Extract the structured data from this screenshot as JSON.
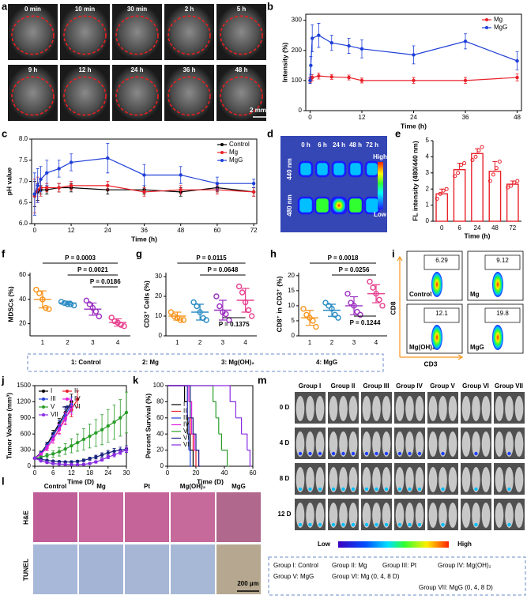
{
  "panel_labels": [
    "a",
    "b",
    "c",
    "d",
    "e",
    "f",
    "g",
    "h",
    "i",
    "j",
    "k",
    "l",
    "m"
  ],
  "ultrasound": {
    "times": [
      "0 min",
      "10 min",
      "30 min",
      "2 h",
      "5 h",
      "9 h",
      "12 h",
      "24 h",
      "36 h",
      "48 h"
    ],
    "scale_bar": "2 mm"
  },
  "chart_data": [
    {
      "type": "line",
      "y_label": "Intensity (%)",
      "x_label": "Time (h)",
      "x": [
        0,
        0.17,
        0.5,
        2,
        5,
        9,
        12,
        24,
        36,
        48
      ],
      "xlim": [
        -1,
        49
      ],
      "xticks": [
        0,
        12,
        24,
        36,
        48
      ],
      "ylim": [
        0,
        320
      ],
      "yticks": [
        0,
        100,
        200,
        300
      ],
      "legend": "upper right",
      "series": [
        {
          "name": "Mg",
          "color": "#e8212a",
          "values": [
            100,
            105,
            110,
            115,
            112,
            110,
            100,
            100,
            100,
            110
          ],
          "errors": [
            8,
            10,
            10,
            10,
            8,
            8,
            8,
            10,
            10,
            12
          ]
        },
        {
          "name": "MgG",
          "color": "#1f3fd8",
          "values": [
            100,
            150,
            240,
            250,
            225,
            215,
            205,
            185,
            230,
            165
          ],
          "errors": [
            10,
            30,
            45,
            40,
            25,
            25,
            30,
            30,
            25,
            30
          ]
        }
      ]
    },
    {
      "type": "line",
      "y_label": "pH value",
      "x_label": "Time (h)",
      "x": [
        0,
        1,
        2,
        4,
        8,
        12,
        24,
        36,
        48,
        60,
        72
      ],
      "xlim": [
        -1,
        73
      ],
      "xticks": [
        0,
        12,
        24,
        36,
        48,
        60,
        72
      ],
      "ylim": [
        6,
        8
      ],
      "yticks": [
        {
          "value": 6,
          "label": "6.0"
        },
        6.5,
        {
          "value": 7,
          "label": "7.0"
        },
        7.5,
        {
          "value": 8,
          "label": "8.0"
        }
      ],
      "legend": "upper right",
      "series": [
        {
          "name": "Control",
          "color": "#000000",
          "values": [
            6.7,
            6.75,
            6.8,
            6.8,
            6.85,
            6.85,
            6.8,
            6.8,
            6.75,
            6.85,
            6.75
          ],
          "errors": [
            0.3,
            0.2,
            0.1,
            0.1,
            0.1,
            0.1,
            0.1,
            0.1,
            0.1,
            0.1,
            0.1
          ]
        },
        {
          "name": "Mg",
          "color": "#e8212a",
          "values": [
            6.65,
            6.8,
            6.85,
            6.85,
            6.85,
            6.9,
            6.9,
            6.75,
            6.8,
            6.8,
            6.75
          ],
          "errors": [
            0.4,
            0.3,
            0.2,
            0.1,
            0.1,
            0.1,
            0.1,
            0.1,
            0.1,
            0.1,
            0.1
          ]
        },
        {
          "name": "MgG",
          "color": "#1f3fd8",
          "values": [
            6.7,
            6.9,
            7.05,
            7.2,
            7.3,
            7.45,
            7.55,
            7.15,
            7.15,
            6.95,
            6.95
          ],
          "errors": [
            0.5,
            0.4,
            0.3,
            0.3,
            0.2,
            0.2,
            0.35,
            0.25,
            0.2,
            0.15,
            0.1
          ]
        }
      ]
    },
    {
      "type": "bar",
      "y_label": "FL intensity (480/440 nm)",
      "x_label": "Time (h)",
      "categories": [
        "0",
        "6",
        "24",
        "48",
        "72"
      ],
      "values": [
        1.7,
        3.2,
        4.2,
        3.1,
        2.3
      ],
      "errors": [
        0.3,
        0.4,
        0.3,
        0.6,
        0.2
      ],
      "points": [
        [
          1.4,
          1.7,
          1.9,
          2.0
        ],
        [
          2.8,
          3.0,
          3.5,
          3.6
        ],
        [
          3.8,
          4.0,
          4.4,
          4.6
        ],
        [
          2.5,
          2.9,
          3.3,
          3.7
        ],
        [
          2.1,
          2.2,
          2.4,
          2.5
        ]
      ],
      "color": "#e8212a",
      "ylim": [
        0,
        5
      ],
      "yticks": [
        0,
        1,
        2,
        3,
        4,
        5
      ]
    },
    {
      "type": "dot",
      "y_label": "MDSCs (%)",
      "categories": [
        "1",
        "2",
        "3",
        "4"
      ],
      "colors": [
        "#f7941d",
        "#2b8cc4",
        "#9b30c0",
        "#e6408f"
      ],
      "points": [
        [
          48,
          45,
          40,
          33,
          32
        ],
        [
          38,
          37,
          36,
          36,
          35
        ],
        [
          39,
          36,
          33,
          30,
          26
        ],
        [
          25,
          22,
          21,
          19,
          18
        ]
      ],
      "means": [
        40,
        37,
        32,
        21
      ],
      "sd": [
        7,
        1.5,
        5,
        3
      ],
      "ylim": [
        10,
        62
      ],
      "yticks": [
        20,
        40,
        60
      ],
      "annotations": [
        "P = 0.0003",
        "P = 0.0021",
        "P = 0.0186"
      ]
    },
    {
      "type": "dot",
      "y_label": "CD3⁺ Cells (%)",
      "categories": [
        "1",
        "2",
        "3",
        "4"
      ],
      "colors": [
        "#f7941d",
        "#2b8cc4",
        "#9b30c0",
        "#e6408f"
      ],
      "points": [
        [
          12,
          10,
          9,
          8,
          8
        ],
        [
          17,
          15,
          12,
          9,
          8
        ],
        [
          20,
          15,
          12,
          11,
          8
        ],
        [
          25,
          22,
          17,
          13,
          10
        ]
      ],
      "means": [
        10,
        12,
        13,
        18
      ],
      "sd": [
        2,
        4,
        5,
        6
      ],
      "ylim": [
        0,
        32
      ],
      "yticks": [
        0,
        10,
        20,
        30
      ],
      "annotations": [
        "P = 0.0115",
        "P = 0.0648",
        "P = 0.1375"
      ]
    },
    {
      "type": "dot",
      "y_label": "CD8⁺ in CD3⁺ (%)",
      "categories": [
        "1",
        "2",
        "3",
        "4"
      ],
      "colors": [
        "#f7941d",
        "#2b8cc4",
        "#9b30c0",
        "#e6408f"
      ],
      "points": [
        [
          9,
          7,
          6,
          5,
          3
        ],
        [
          11,
          10,
          9,
          7,
          6
        ],
        [
          14,
          11,
          10,
          8,
          7
        ],
        [
          18,
          16,
          14,
          12,
          10
        ]
      ],
      "means": [
        6,
        8.5,
        10,
        14
      ],
      "sd": [
        2.5,
        2,
        3,
        3
      ],
      "ylim": [
        0,
        21
      ],
      "yticks": [
        0,
        5,
        10,
        15,
        20
      ],
      "annotations": [
        "P = 0.0018",
        "P = 0.0256",
        "P = 0.1244"
      ]
    },
    {
      "type": "line",
      "y_label": "Tumor Volume (mm³)",
      "x_label": "Time (D)",
      "x": [
        0,
        2,
        4,
        6,
        8,
        10,
        12,
        14,
        16,
        18,
        20,
        22,
        24,
        26,
        28,
        30
      ],
      "xlim": [
        0,
        30
      ],
      "xticks": [
        0,
        6,
        12,
        18,
        24,
        30
      ],
      "ylim": [
        0,
        1500
      ],
      "yticks": [
        0,
        300,
        600,
        900,
        1200,
        1500
      ],
      "legend": "upper left",
      "series": [
        {
          "name": "I",
          "color": "#000000",
          "values": [
            150,
            250,
            400,
            600,
            800,
            1000,
            1200,
            null,
            null,
            null,
            null,
            null,
            null,
            null,
            null,
            null
          ],
          "errors": [
            10,
            30,
            50,
            70,
            90,
            110,
            140,
            null,
            null,
            null,
            null,
            null,
            null,
            null,
            null,
            null
          ]
        },
        {
          "name": "II",
          "color": "#e8212a",
          "values": [
            150,
            230,
            350,
            500,
            700,
            900,
            1050,
            1250,
            null,
            null,
            null,
            null,
            null,
            null,
            null,
            null
          ],
          "errors": [
            10,
            30,
            50,
            70,
            90,
            110,
            130,
            150,
            null,
            null,
            null,
            null,
            null,
            null,
            null,
            null
          ]
        },
        {
          "name": "III",
          "color": "#1f3fd8",
          "values": [
            150,
            240,
            380,
            560,
            760,
            950,
            1150,
            null,
            null,
            null,
            null,
            null,
            null,
            null,
            null,
            null
          ],
          "errors": [
            10,
            30,
            50,
            70,
            90,
            110,
            140,
            null,
            null,
            null,
            null,
            null,
            null,
            null,
            null,
            null
          ]
        },
        {
          "name": "IV",
          "color": "#e020e0",
          "values": [
            150,
            220,
            340,
            500,
            680,
            880,
            1100,
            null,
            null,
            null,
            null,
            null,
            null,
            null,
            null,
            null
          ],
          "errors": [
            10,
            30,
            50,
            70,
            90,
            110,
            130,
            null,
            null,
            null,
            null,
            null,
            null,
            null,
            null,
            null
          ]
        },
        {
          "name": "V",
          "color": "#2a9d2a",
          "values": [
            150,
            170,
            200,
            230,
            270,
            320,
            380,
            440,
            500,
            560,
            620,
            680,
            750,
            820,
            900,
            1000
          ],
          "errors": [
            10,
            20,
            40,
            60,
            80,
            100,
            130,
            160,
            200,
            220,
            250,
            280,
            300,
            320,
            340,
            380
          ]
        },
        {
          "name": "VI",
          "color": "#1a237e",
          "values": [
            150,
            130,
            110,
            95,
            85,
            80,
            80,
            90,
            110,
            140,
            170,
            210,
            250,
            280,
            300,
            320
          ],
          "errors": [
            10,
            15,
            15,
            15,
            15,
            15,
            20,
            20,
            25,
            30,
            35,
            40,
            45,
            50,
            55,
            60
          ]
        },
        {
          "name": "VII",
          "color": "#8a2be2",
          "values": [
            150,
            100,
            70,
            50,
            40,
            35,
            30,
            30,
            35,
            50,
            80,
            120,
            170,
            210,
            260,
            300
          ],
          "errors": [
            10,
            15,
            15,
            10,
            10,
            10,
            10,
            10,
            10,
            15,
            20,
            25,
            30,
            35,
            40,
            45
          ]
        }
      ]
    },
    {
      "type": "step",
      "y_label": "Percent Survival (%)",
      "x_label": "Time (D)",
      "xlim": [
        0,
        60
      ],
      "xticks": [
        0,
        20,
        40,
        60
      ],
      "ylim": [
        0,
        100
      ],
      "yticks": [
        0,
        20,
        40,
        60,
        80,
        100
      ],
      "legend": "center left",
      "series": [
        {
          "name": "I",
          "color": "#000000",
          "x": [
            0,
            12,
            14,
            16,
            18
          ],
          "values": [
            100,
            80,
            40,
            20,
            0
          ]
        },
        {
          "name": "II",
          "color": "#e8212a",
          "x": [
            0,
            14,
            16,
            18,
            20
          ],
          "values": [
            100,
            60,
            40,
            20,
            0
          ]
        },
        {
          "name": "III",
          "color": "#1f3fd8",
          "x": [
            0,
            14,
            15,
            16
          ],
          "values": [
            100,
            60,
            20,
            0
          ]
        },
        {
          "name": "IV",
          "color": "#e020e0",
          "x": [
            0,
            15,
            17,
            19,
            22
          ],
          "values": [
            100,
            80,
            40,
            20,
            0
          ]
        },
        {
          "name": "V",
          "color": "#2a9d2a",
          "x": [
            0,
            32,
            34,
            36,
            38,
            42
          ],
          "values": [
            100,
            80,
            60,
            40,
            20,
            0
          ]
        },
        {
          "name": "VI",
          "color": "#1a237e",
          "x": [
            0,
            16,
            18,
            20,
            22
          ],
          "values": [
            100,
            60,
            40,
            20,
            0
          ]
        },
        {
          "name": "VII",
          "color": "#8a2be2",
          "x": [
            0,
            44,
            48,
            52,
            56,
            58
          ],
          "values": [
            100,
            80,
            60,
            40,
            20,
            0
          ]
        }
      ]
    }
  ],
  "group_legend": {
    "items": [
      "1: Control",
      "2: Mg",
      "3: Mg(OH)₂",
      "4: MgG"
    ],
    "colors": [
      "#f7941d",
      "#2b8cc4",
      "#9b30c0",
      "#e6408f"
    ]
  },
  "fluorescence": {
    "times": [
      "0 h",
      "6 h",
      "24 h",
      "48 h",
      "72 h"
    ],
    "rows": [
      "440 nm",
      "480 nm"
    ],
    "colorbar": [
      "High",
      "Low"
    ]
  },
  "flow": {
    "values": [
      6.29,
      9.12,
      12.1,
      19.8
    ],
    "groups": [
      "Control",
      "Mg",
      "Mg(OH)₂",
      "MgG"
    ],
    "colors": [
      "#f7941d",
      "#1f3fd8",
      "#9b30c0",
      "#e8212a"
    ],
    "x_label": "CD3",
    "y_label": "CD8"
  },
  "histology": {
    "groups": [
      "Control",
      "Mg",
      "Pt",
      "Mg(OH)₂",
      "MgG"
    ],
    "rows": [
      "H&E",
      "TUNEL"
    ],
    "scale_bar": "200 µm"
  },
  "imaging": {
    "groups": [
      "Group I",
      "Group II",
      "Group III",
      "Group IV",
      "Group V",
      "Group VI",
      "Group VII"
    ],
    "colors": [
      "#000000",
      "#e8212a",
      "#1f3fd8",
      "#e020e0",
      "#2a9d2a",
      "#1a237e",
      "#8a2be2"
    ],
    "days": [
      "0 D",
      "4 D",
      "8 D",
      "12 D"
    ],
    "colorbar": [
      "Low",
      "High"
    ],
    "legend": [
      "Group I: Control",
      "Group II: Mg",
      "Group III: Pt",
      "Group IV: Mg(OH)₂",
      "Group V: MgG",
      "Group VI: Mg (0, 4, 8 D)",
      "Group VII: MgG (0, 4, 8 D)"
    ]
  }
}
